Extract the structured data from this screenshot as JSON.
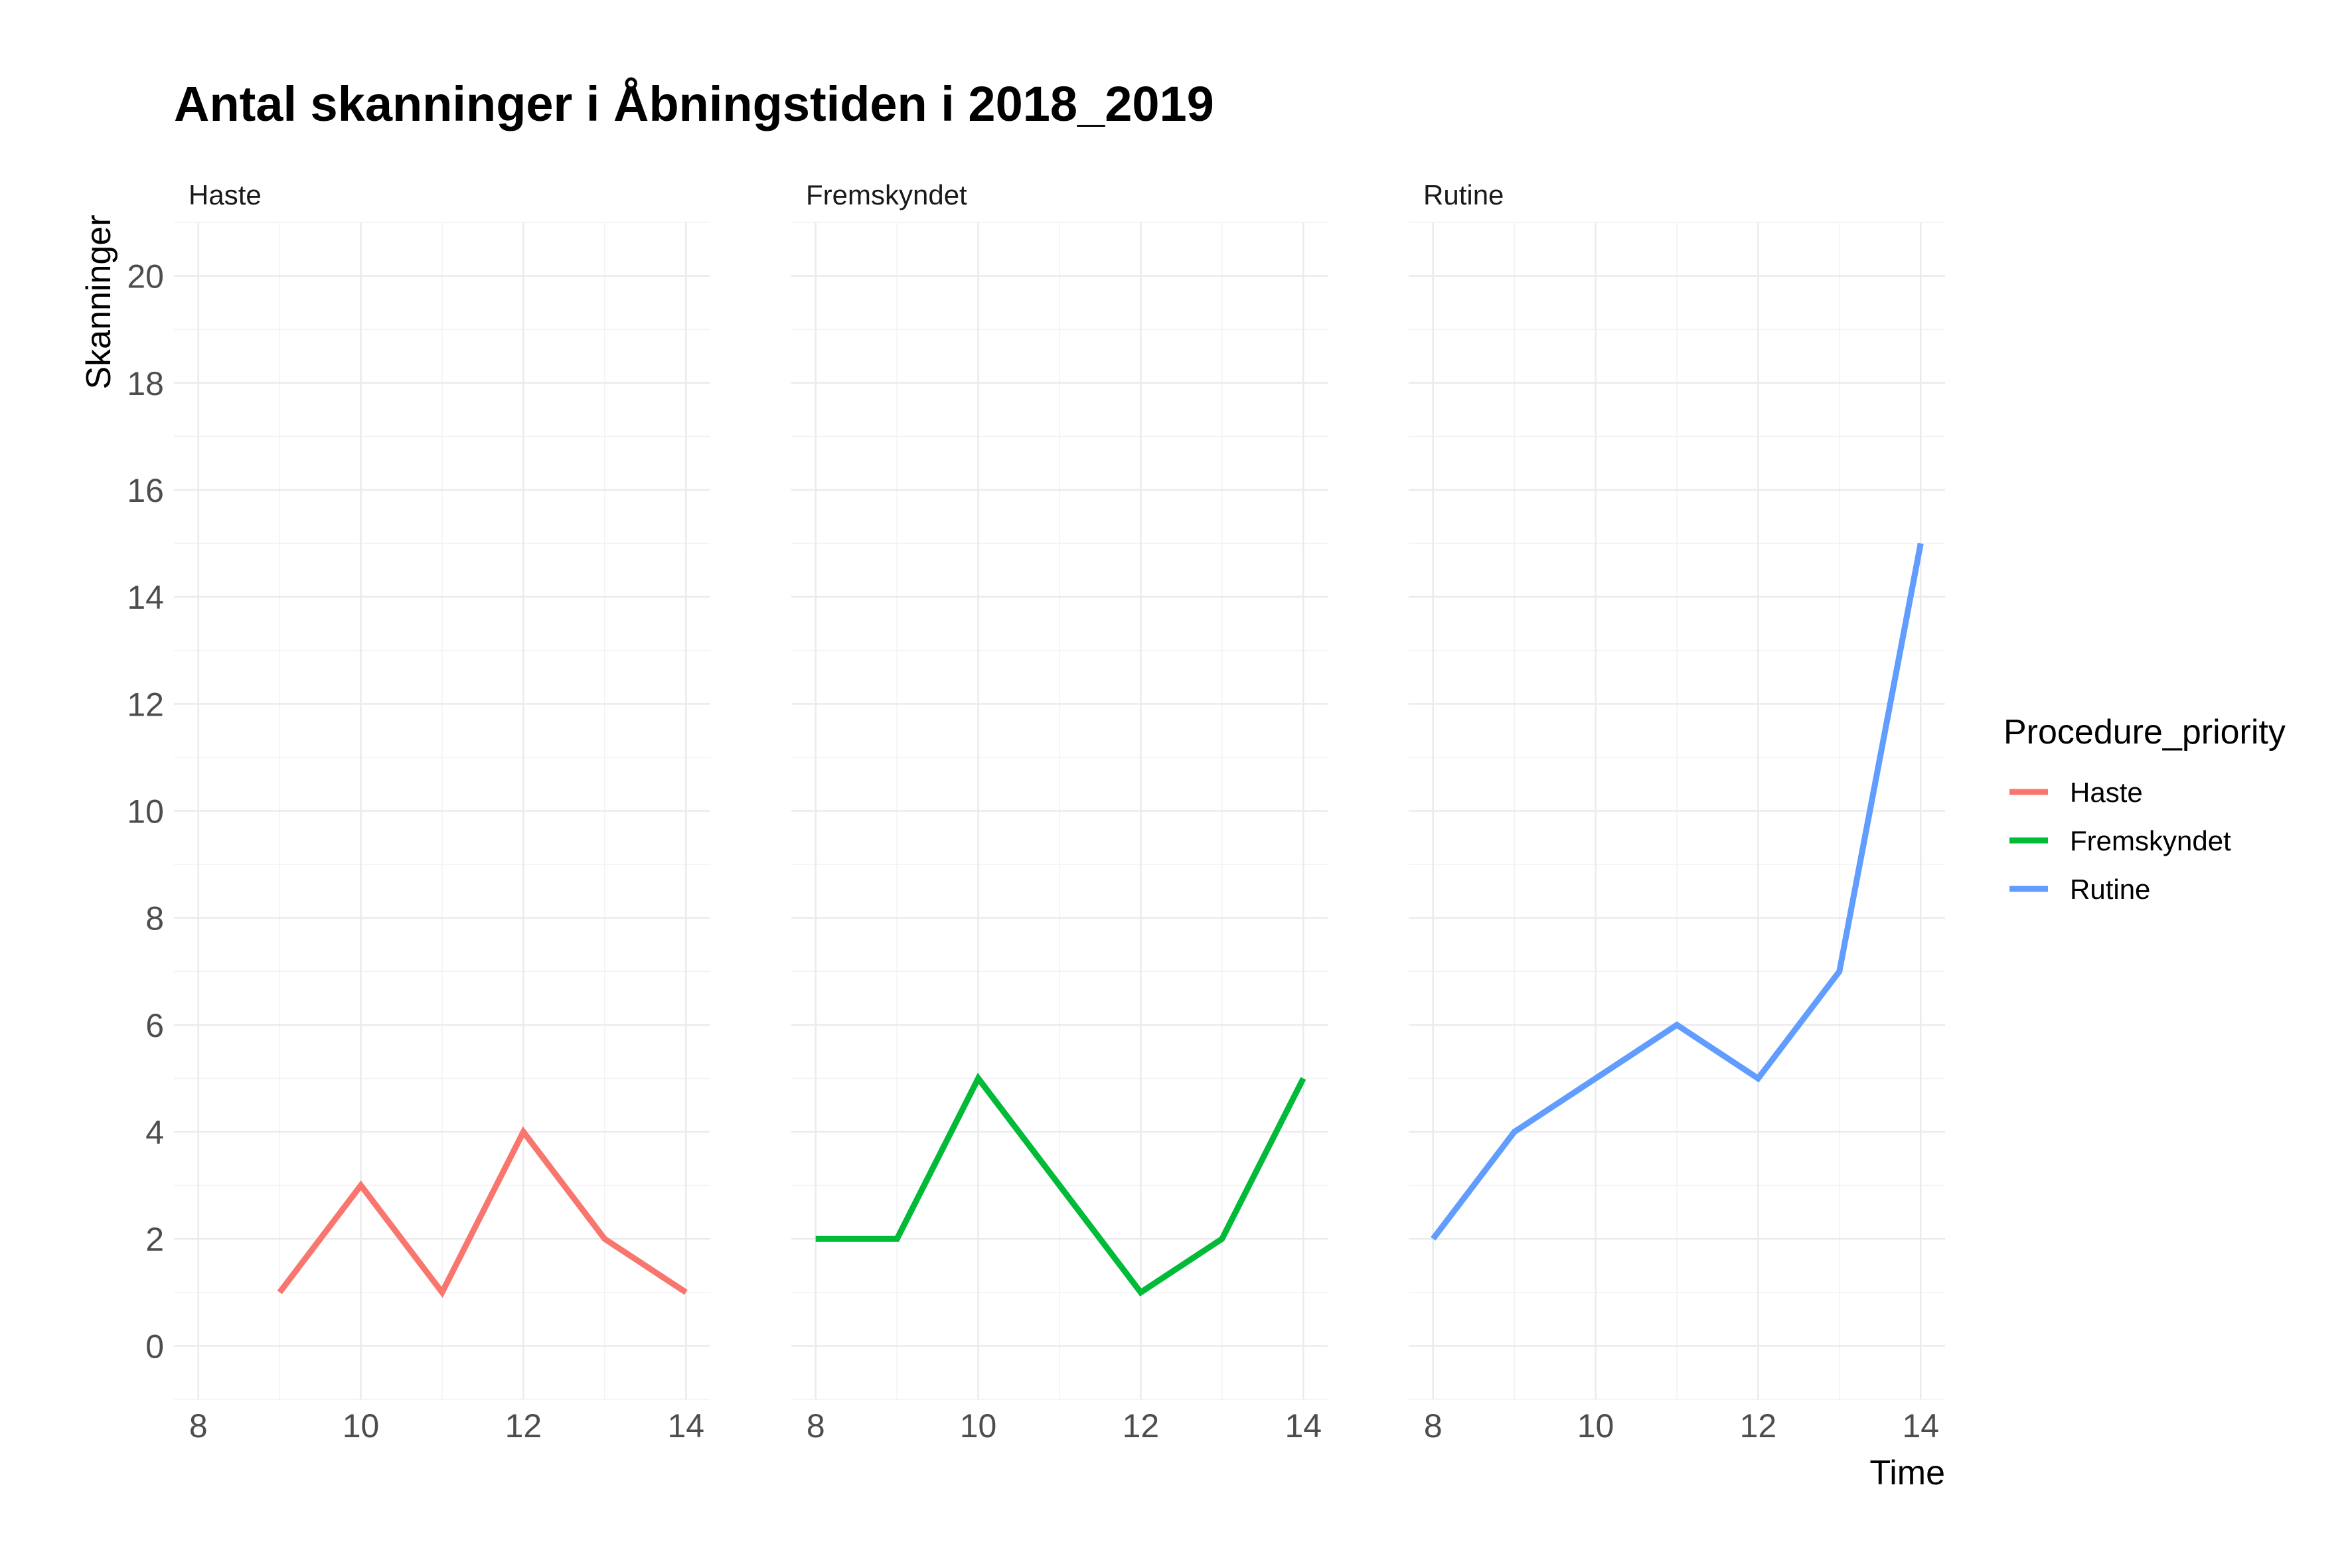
{
  "chart_data": {
    "type": "line",
    "title": "Antal skanninger i Åbningstiden i 2018_2019",
    "xlabel": "Time",
    "ylabel": "Skanninger",
    "xlim": [
      7.7,
      14.3
    ],
    "ylim": [
      -1,
      21
    ],
    "x_ticks": [
      8,
      10,
      12,
      14
    ],
    "y_ticks": [
      0,
      2,
      4,
      6,
      8,
      10,
      12,
      14,
      16,
      18,
      20
    ],
    "grid": true,
    "legend": {
      "title": "Procedure_priority",
      "position": "right"
    },
    "facets": [
      {
        "label": "Haste",
        "series_index": 0
      },
      {
        "label": "Fremskyndet",
        "series_index": 1
      },
      {
        "label": "Rutine",
        "series_index": 2
      }
    ],
    "series": [
      {
        "name": "Haste",
        "color": "#F8766D",
        "x": [
          9,
          10,
          11,
          12,
          13,
          14
        ],
        "y": [
          1,
          3,
          1,
          4,
          2,
          1
        ]
      },
      {
        "name": "Fremskyndet",
        "color": "#00BA38",
        "x": [
          8,
          9,
          10,
          11,
          12,
          13,
          14
        ],
        "y": [
          2,
          2,
          5,
          3,
          1,
          2,
          5
        ]
      },
      {
        "name": "Rutine",
        "color": "#619CFF",
        "x": [
          8,
          9,
          10,
          11,
          12,
          13,
          14
        ],
        "y": [
          2,
          4,
          5,
          6,
          5,
          7,
          15
        ]
      }
    ]
  }
}
